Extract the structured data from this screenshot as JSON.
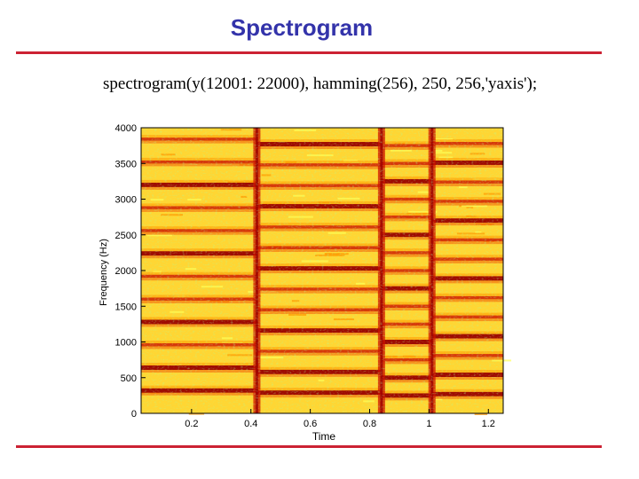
{
  "slide": {
    "title": "Spectrogram",
    "code_line": "spectrogram(y(12001: 22000), hamming(256), 250, 256,'yaxis');"
  },
  "chart_data": {
    "type": "heatmap",
    "title": "",
    "xlabel": "Time",
    "ylabel": "Frequency (Hz)",
    "xlim": [
      0.03,
      1.25
    ],
    "ylim": [
      0,
      4000
    ],
    "x_ticks": [
      "0.2",
      "0.4",
      "0.6",
      "0.8",
      "1",
      "1.2"
    ],
    "x_tick_values": [
      0.2,
      0.4,
      0.6,
      0.8,
      1.0,
      1.2
    ],
    "y_ticks": [
      "0",
      "500",
      "1000",
      "1500",
      "2000",
      "2500",
      "3000",
      "3500",
      "4000"
    ],
    "y_tick_values": [
      0,
      500,
      1000,
      1500,
      2000,
      2500,
      3000,
      3500,
      4000
    ],
    "colormap": [
      "#ffff55",
      "#ffdd22",
      "#ff9900",
      "#ee4400",
      "#cc1100",
      "#990000"
    ],
    "background_color": "#ffd633",
    "note_onsets_s": [
      0.42,
      0.84,
      1.01
    ],
    "segments": [
      {
        "t_start": 0.03,
        "t_end": 0.42,
        "harmonics_hz": [
          320,
          640,
          960,
          1280,
          1600,
          1920,
          2240,
          2560,
          2880,
          3200,
          3520,
          3840
        ]
      },
      {
        "t_start": 0.42,
        "t_end": 0.84,
        "harmonics_hz": [
          290,
          580,
          870,
          1160,
          1450,
          1740,
          2030,
          2320,
          2610,
          2900,
          3190,
          3480,
          3770
        ]
      },
      {
        "t_start": 0.84,
        "t_end": 1.01,
        "harmonics_hz": [
          250,
          500,
          750,
          1000,
          1250,
          1500,
          1750,
          2000,
          2250,
          2500,
          2750,
          3000,
          3250,
          3500,
          3750
        ]
      },
      {
        "t_start": 1.01,
        "t_end": 1.25,
        "harmonics_hz": [
          270,
          540,
          810,
          1080,
          1350,
          1620,
          1890,
          2160,
          2430,
          2700,
          2970,
          3240,
          3510,
          3780
        ]
      }
    ]
  }
}
